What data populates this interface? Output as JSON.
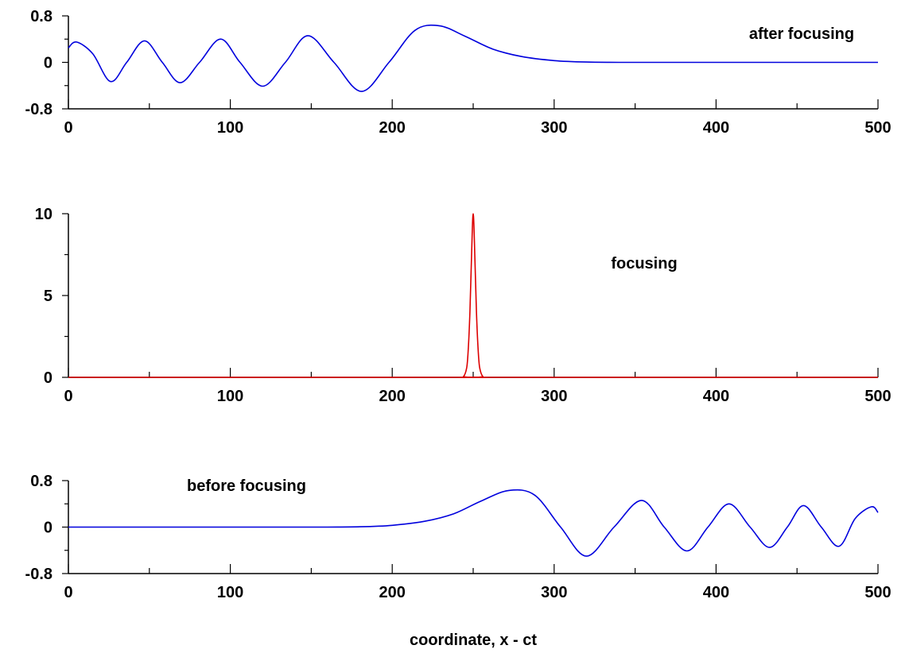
{
  "chart_data": [
    {
      "type": "line",
      "title": "",
      "xlabel": "",
      "ylabel": "",
      "annotation": "after focusing",
      "xlim": [
        0,
        500
      ],
      "ylim": [
        -0.8,
        0.8
      ],
      "x_ticks": [
        "0",
        "100",
        "200",
        "300",
        "400",
        "500"
      ],
      "y_ticks": [
        "0.8",
        "0",
        "-0.8"
      ],
      "grid": false,
      "series": [
        {
          "color": "#0000dd",
          "x": [
            0,
            5,
            15,
            26,
            36,
            47,
            58,
            69,
            81,
            94,
            106,
            120,
            134,
            148,
            164,
            181,
            198,
            214,
            229,
            245,
            262,
            280,
            300,
            320,
            340,
            370,
            420,
            470,
            500
          ],
          "y": [
            0.25,
            0.35,
            0.15,
            -0.33,
            0.0,
            0.37,
            0.0,
            -0.35,
            0.0,
            0.4,
            0.0,
            -0.41,
            0.0,
            0.46,
            0.0,
            -0.5,
            0.0,
            0.55,
            0.63,
            0.45,
            0.23,
            0.1,
            0.03,
            0.005,
            0.0,
            0.0,
            0.0,
            0.0,
            0.0
          ]
        }
      ]
    },
    {
      "type": "line",
      "title": "",
      "xlabel": "",
      "ylabel": "",
      "annotation": "focusing",
      "xlim": [
        0,
        500
      ],
      "ylim": [
        0,
        10
      ],
      "x_ticks": [
        "0",
        "100",
        "200",
        "300",
        "400",
        "500"
      ],
      "y_ticks": [
        "10",
        "5",
        "0"
      ],
      "grid": false,
      "series": [
        {
          "color": "#dd0000",
          "x": [
            0,
            240,
            244,
            246,
            247,
            248,
            249,
            250,
            251,
            252,
            253,
            254,
            256,
            260,
            500
          ],
          "y": [
            0,
            0,
            0.05,
            0.6,
            1.8,
            4.0,
            7.5,
            10.0,
            7.5,
            4.0,
            1.8,
            0.6,
            0.05,
            0,
            0
          ]
        }
      ]
    },
    {
      "type": "line",
      "title": "",
      "xlabel": "coordinate, x - ct",
      "ylabel": "",
      "annotation": "before focusing",
      "xlim": [
        0,
        500
      ],
      "ylim": [
        -0.8,
        0.8
      ],
      "x_ticks": [
        "0",
        "100",
        "200",
        "300",
        "400",
        "500"
      ],
      "y_ticks": [
        "0.8",
        "0",
        "-0.8"
      ],
      "grid": false,
      "series": [
        {
          "color": "#0000dd",
          "x": [
            0,
            30,
            80,
            130,
            160,
            180,
            200,
            220,
            238,
            255,
            272,
            288,
            304,
            320,
            337,
            354,
            368,
            382,
            395,
            408,
            421,
            433,
            444,
            454,
            465,
            476,
            486,
            496,
            500
          ],
          "y": [
            0.0,
            0.0,
            0.0,
            0.0,
            0.0,
            0.005,
            0.03,
            0.1,
            0.23,
            0.45,
            0.63,
            0.55,
            0.0,
            -0.5,
            0.0,
            0.46,
            0.0,
            -0.41,
            0.0,
            0.4,
            0.0,
            -0.35,
            0.0,
            0.37,
            0.0,
            -0.33,
            0.15,
            0.35,
            0.25
          ]
        }
      ]
    }
  ]
}
